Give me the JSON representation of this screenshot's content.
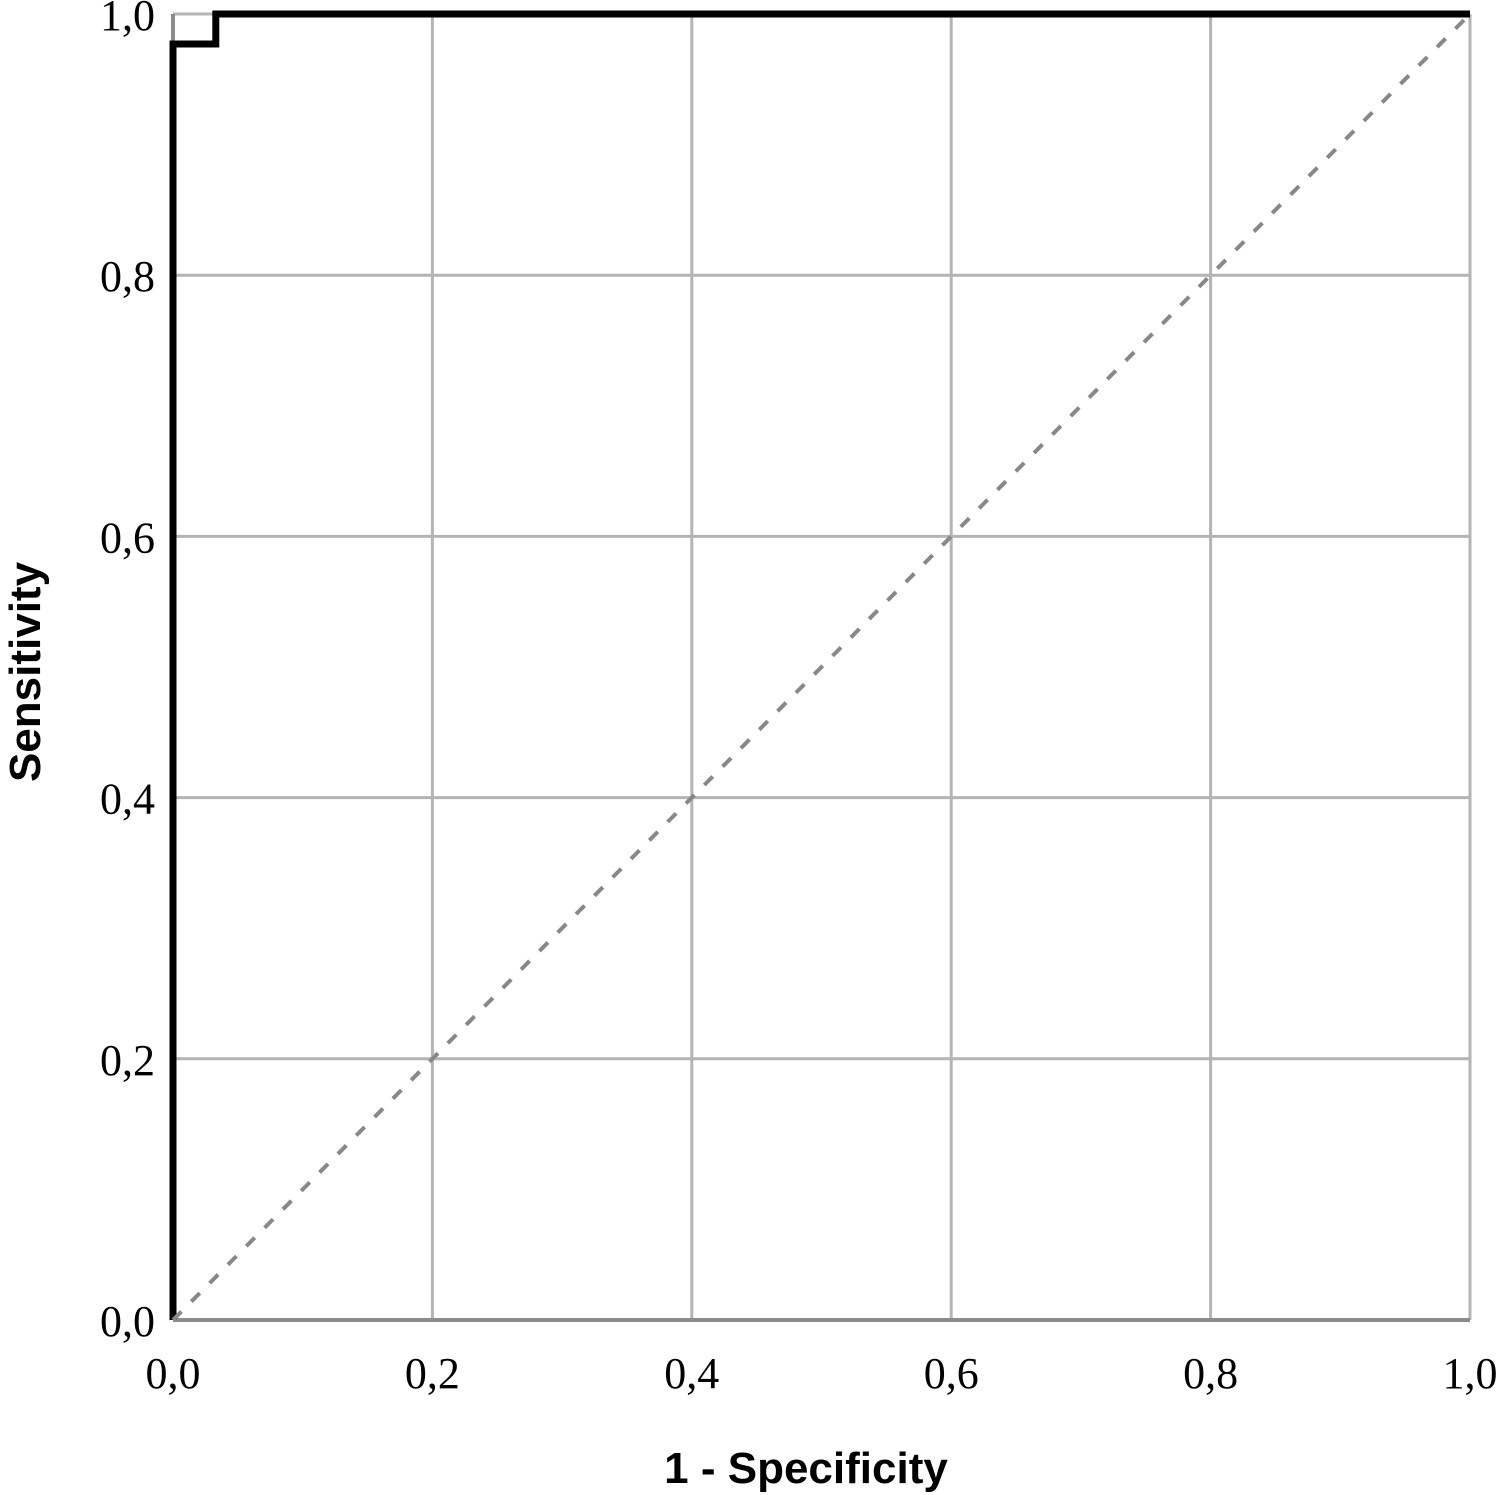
{
  "chart_data": {
    "type": "line",
    "xlabel": "1 - Specificity",
    "ylabel": "Sensitivity",
    "xlim": [
      0,
      1
    ],
    "ylim": [
      0,
      1
    ],
    "xticks": [
      "0,0",
      "0,2",
      "0,4",
      "0,6",
      "0,8",
      "1,0"
    ],
    "yticks": [
      "0,0",
      "0,2",
      "0,4",
      "0,6",
      "0,8",
      "1,0"
    ],
    "xtick_values": [
      0,
      0.2,
      0.4,
      0.6,
      0.8,
      1.0
    ],
    "ytick_values": [
      0,
      0.2,
      0.4,
      0.6,
      0.8,
      1.0
    ],
    "grid": true,
    "series": [
      {
        "style": "solid",
        "color": "#000000",
        "x": [
          0,
          0,
          0.033,
          0.033,
          1.0
        ],
        "y": [
          0,
          0.977,
          0.977,
          1.0,
          1.0
        ]
      },
      {
        "style": "dashed",
        "color": "#888888",
        "x": [
          0,
          1
        ],
        "y": [
          0,
          1
        ]
      }
    ]
  }
}
